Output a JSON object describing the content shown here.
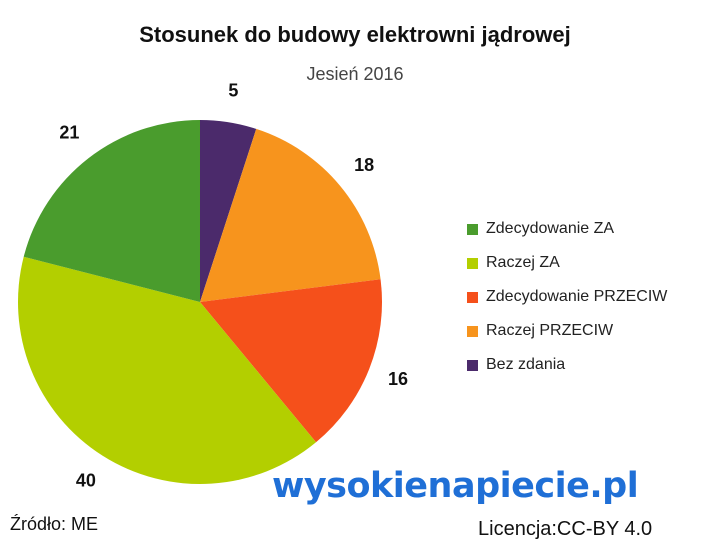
{
  "title": "Stosunek do budowy elektrowni jądrowej",
  "subtitle": "Jesień 2016",
  "source": "Źródło: ME",
  "brand": "wysokienapiecie.pl",
  "license": "Licencja:CC-BY 4.0",
  "chart_data": {
    "type": "pie",
    "title": "Stosunek do budowy elektrowni jądrowej",
    "subtitle": "Jesień 2016",
    "slices": [
      {
        "label": "Bez zdania",
        "value": 5,
        "color": "#4b2a6b"
      },
      {
        "label": "Raczej PRZECIW",
        "value": 18,
        "color": "#f7941d"
      },
      {
        "label": "Zdecydowanie PRZECIW",
        "value": 16,
        "color": "#f5501b"
      },
      {
        "label": "Raczej ZA",
        "value": 40,
        "color": "#b3cf00"
      },
      {
        "label": "Zdecydowanie ZA",
        "value": 21,
        "color": "#4a9c2d"
      }
    ],
    "legend": [
      {
        "label": "Zdecydowanie ZA",
        "color": "#4a9c2d"
      },
      {
        "label": "Raczej ZA",
        "color": "#b3cf00"
      },
      {
        "label": "Zdecydowanie PRZECIW",
        "color": "#f5501b"
      },
      {
        "label": "Raczej PRZECIW",
        "color": "#f7941d"
      },
      {
        "label": "Bez zdania",
        "color": "#4b2a6b"
      }
    ],
    "legend_position": "right"
  }
}
